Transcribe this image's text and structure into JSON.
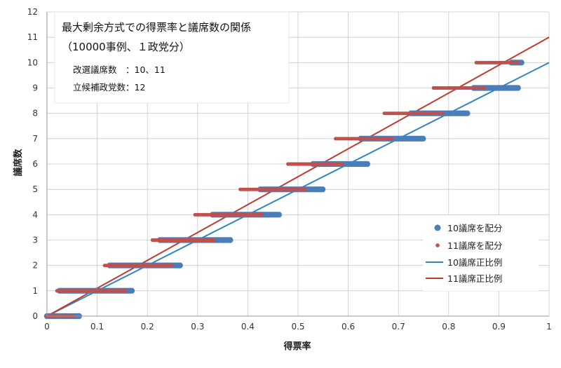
{
  "chart_data": {
    "type": "scatter",
    "title": "",
    "xlabel": "得票率",
    "ylabel": "議席数",
    "xlim": [
      0,
      1
    ],
    "ylim": [
      0,
      12
    ],
    "x_ticks": [
      "0",
      "0.1",
      "0.2",
      "0.3",
      "0.4",
      "0.5",
      "0.6",
      "0.7",
      "0.8",
      "0.9",
      "1"
    ],
    "y_ticks": [
      "0",
      "1",
      "2",
      "3",
      "4",
      "5",
      "6",
      "7",
      "8",
      "9",
      "10",
      "11",
      "12"
    ],
    "grid": true,
    "legend_position": "right",
    "annotation": {
      "line1": "最大剰余方式での得票率と議席数の関係",
      "line2": "（10000事例、１政党分）",
      "line3": "改選議席数　：10、11",
      "line4": "立候補政党数：12"
    },
    "scatter_series": [
      {
        "name": "10議席を配分",
        "color": "#4A7EBB",
        "ranges": [
          {
            "seats": 0,
            "xmin": 0.0,
            "xmax": 0.065
          },
          {
            "seats": 1,
            "xmin": 0.025,
            "xmax": 0.172
          },
          {
            "seats": 2,
            "xmin": 0.125,
            "xmax": 0.268
          },
          {
            "seats": 3,
            "xmin": 0.225,
            "xmax": 0.366
          },
          {
            "seats": 4,
            "xmin": 0.33,
            "xmax": 0.462
          },
          {
            "seats": 5,
            "xmin": 0.425,
            "xmax": 0.552
          },
          {
            "seats": 6,
            "xmin": 0.53,
            "xmax": 0.638
          },
          {
            "seats": 7,
            "xmin": 0.625,
            "xmax": 0.752
          },
          {
            "seats": 8,
            "xmin": 0.725,
            "xmax": 0.838
          },
          {
            "seats": 9,
            "xmin": 0.85,
            "xmax": 0.94
          },
          {
            "seats": 10,
            "xmin": 0.925,
            "xmax": 0.945
          }
        ]
      },
      {
        "name": "11議席を配分",
        "color": "#C0504D",
        "ranges": [
          {
            "seats": 0,
            "xmin": 0.0,
            "xmax": 0.055
          },
          {
            "seats": 1,
            "xmin": 0.02,
            "xmax": 0.158
          },
          {
            "seats": 2,
            "xmin": 0.115,
            "xmax": 0.248
          },
          {
            "seats": 3,
            "xmin": 0.21,
            "xmax": 0.333
          },
          {
            "seats": 4,
            "xmin": 0.295,
            "xmax": 0.43
          },
          {
            "seats": 5,
            "xmin": 0.385,
            "xmax": 0.515
          },
          {
            "seats": 6,
            "xmin": 0.48,
            "xmax": 0.59
          },
          {
            "seats": 7,
            "xmin": 0.575,
            "xmax": 0.69
          },
          {
            "seats": 8,
            "xmin": 0.672,
            "xmax": 0.79
          },
          {
            "seats": 9,
            "xmin": 0.77,
            "xmax": 0.872
          },
          {
            "seats": 10,
            "xmin": 0.855,
            "xmax": 0.94
          }
        ]
      }
    ],
    "line_series": [
      {
        "name": "10議席正比例",
        "color": "#2E86C1",
        "points": [
          [
            0,
            0
          ],
          [
            1,
            10
          ]
        ]
      },
      {
        "name": "11議席正比例",
        "color": "#C0392B",
        "points": [
          [
            0,
            0
          ],
          [
            1,
            11
          ]
        ]
      }
    ]
  }
}
